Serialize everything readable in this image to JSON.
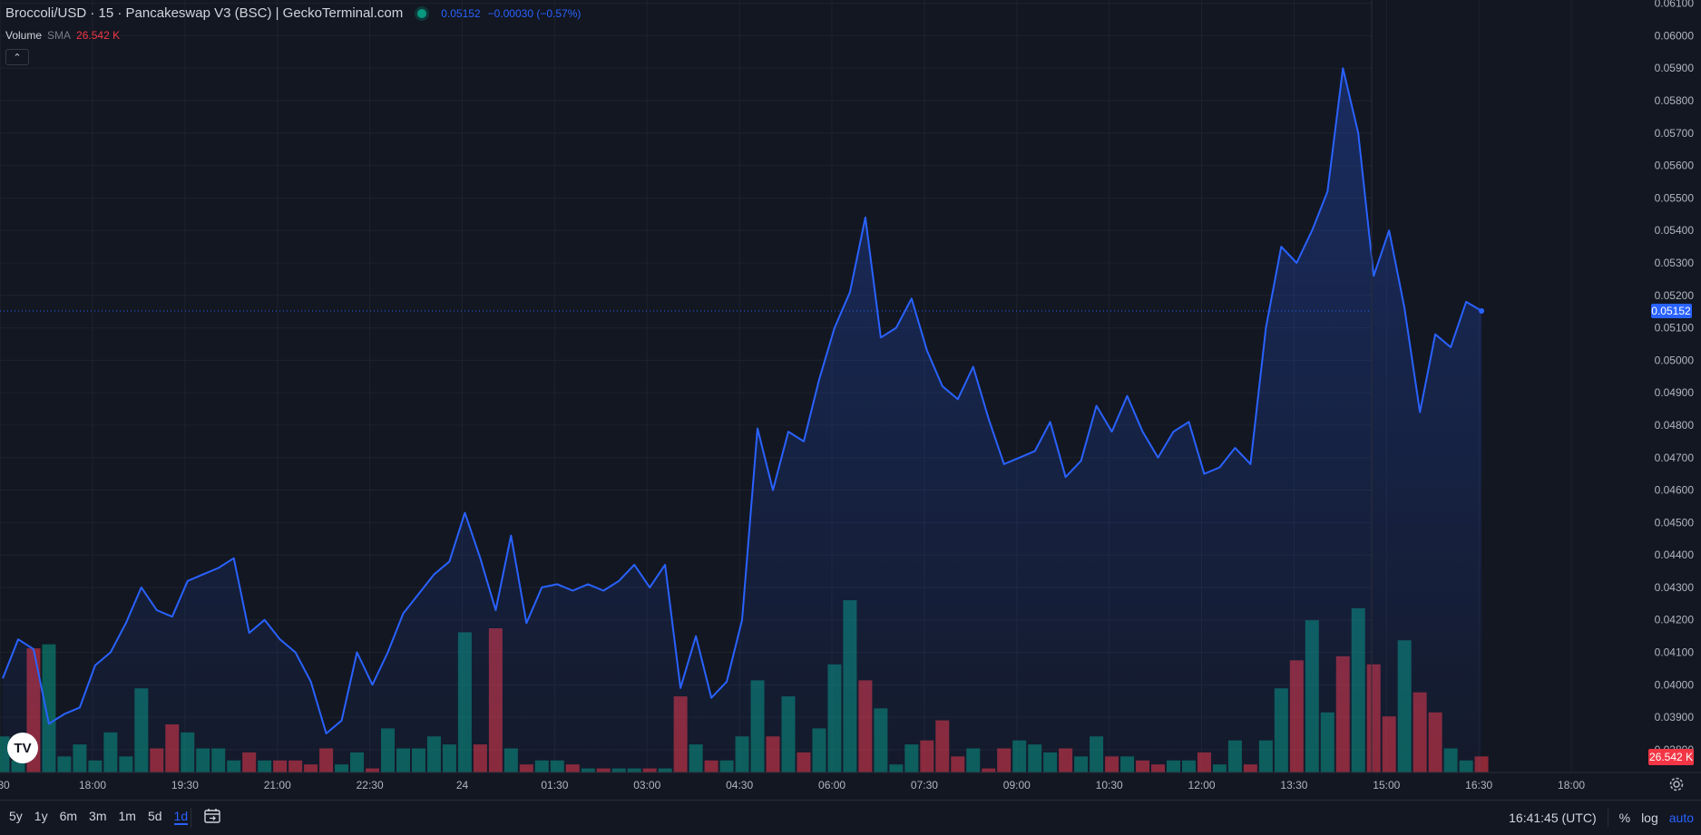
{
  "header": {
    "title": "Broccoli/USD · 15 · Pancakeswap V3 (BSC) | GeckoTerminal.com",
    "price": "0.05152",
    "change": "−0.00030 (−0.57%)"
  },
  "volume_legend": {
    "label": "Volume",
    "sma_label": "SMA",
    "sma_value": "26.542 K"
  },
  "bottom_bar": {
    "ranges": [
      "5y",
      "1y",
      "6m",
      "3m",
      "1m",
      "5d",
      "1d"
    ],
    "active_range": "1d",
    "time": "16:41:45 (UTC)",
    "percent": "%",
    "log": "log",
    "auto": "auto"
  },
  "colors": {
    "background": "#131722",
    "line": "#2962ff",
    "up": "#089981",
    "down": "#f23645"
  },
  "chart_data": {
    "type": "area",
    "series": [
      {
        "name": "Broccoli/USD",
        "values": [
          0.0402,
          0.0414,
          0.0411,
          0.0388,
          0.0391,
          0.0393,
          0.0406,
          0.041,
          0.0419,
          0.043,
          0.0423,
          0.0421,
          0.0432,
          0.0434,
          0.0436,
          0.0439,
          0.0416,
          0.042,
          0.0414,
          0.041,
          0.0401,
          0.0385,
          0.0389,
          0.041,
          0.04,
          0.041,
          0.0422,
          0.0428,
          0.0434,
          0.0438,
          0.0453,
          0.0439,
          0.0423,
          0.0446,
          0.0419,
          0.043,
          0.0431,
          0.0429,
          0.0431,
          0.0429,
          0.0432,
          0.0437,
          0.043,
          0.0437,
          0.0399,
          0.0415,
          0.0396,
          0.0401,
          0.042,
          0.0479,
          0.046,
          0.0478,
          0.0475,
          0.0494,
          0.051,
          0.0521,
          0.0544,
          0.0507,
          0.051,
          0.0519,
          0.0503,
          0.0492,
          0.0488,
          0.0498,
          0.0482,
          0.0468,
          0.047,
          0.0472,
          0.0481,
          0.0464,
          0.0469,
          0.0486,
          0.0478,
          0.0489,
          0.0478,
          0.047,
          0.0478,
          0.0481,
          0.0465,
          0.0467,
          0.0473,
          0.0468,
          0.051,
          0.0535,
          0.053,
          0.054,
          0.0552,
          0.059,
          0.057,
          0.0526,
          0.054,
          0.0516,
          0.0484,
          0.0508,
          0.0504,
          0.0518,
          0.05152
        ]
      }
    ],
    "volume": {
      "values": [
        9,
        3,
        31,
        32,
        4,
        7,
        3,
        10,
        4,
        21,
        6,
        12,
        10,
        6,
        6,
        3,
        5,
        3,
        3,
        3,
        2,
        6,
        2,
        5,
        1,
        11,
        6,
        6,
        9,
        7,
        35,
        7,
        36,
        6,
        2,
        3,
        3,
        2,
        1,
        1,
        1,
        1,
        1,
        1,
        19,
        7,
        3,
        3,
        9,
        23,
        9,
        19,
        5,
        11,
        27,
        43,
        23,
        16,
        2,
        7,
        8,
        13,
        4,
        6,
        1,
        6,
        8,
        7,
        5,
        6,
        4,
        9,
        4,
        4,
        3,
        2,
        3,
        3,
        5,
        2,
        8,
        2,
        8,
        21,
        28,
        38,
        15,
        29,
        41,
        27,
        14,
        33,
        20,
        15,
        6,
        3,
        4
      ],
      "up": [
        true,
        true,
        false,
        true,
        true,
        true,
        true,
        true,
        true,
        true,
        false,
        false,
        true,
        true,
        true,
        true,
        false,
        true,
        false,
        false,
        false,
        false,
        true,
        true,
        false,
        true,
        true,
        true,
        true,
        true,
        true,
        false,
        false,
        true,
        false,
        true,
        true,
        false,
        true,
        false,
        true,
        true,
        false,
        true,
        false,
        true,
        false,
        true,
        true,
        true,
        false,
        true,
        false,
        true,
        true,
        true,
        false,
        true,
        true,
        true,
        false,
        false,
        false,
        true,
        false,
        false,
        true,
        true,
        true,
        false,
        true,
        true,
        false,
        true,
        false,
        false,
        true,
        true,
        false,
        true,
        true,
        false,
        true,
        true,
        false,
        true,
        true,
        false,
        true,
        false,
        false,
        true,
        false,
        false,
        true,
        true,
        false
      ],
      "sma_value": 26.542
    },
    "x_tick_labels": [
      "30",
      "18:00",
      "19:30",
      "21:00",
      "22:30",
      "24",
      "01:30",
      "03:00",
      "04:30",
      "06:00",
      "07:30",
      "09:00",
      "10:30",
      "12:00",
      "13:30",
      "15:00",
      "16:30",
      "18:00"
    ],
    "y_tick_labels": [
      "0.06100",
      "0.06000",
      "0.05900",
      "0.05800",
      "0.05700",
      "0.05600",
      "0.05500",
      "0.05400",
      "0.05300",
      "0.05200",
      "0.05100",
      "0.05000",
      "0.04900",
      "0.04800",
      "0.04700",
      "0.04600",
      "0.04500",
      "0.04400",
      "0.04300",
      "0.04200",
      "0.04100",
      "0.04000",
      "0.03900",
      "0.03800"
    ],
    "ylim": [
      0.0373,
      0.0611
    ],
    "last_price": 0.05152,
    "grid": true
  }
}
